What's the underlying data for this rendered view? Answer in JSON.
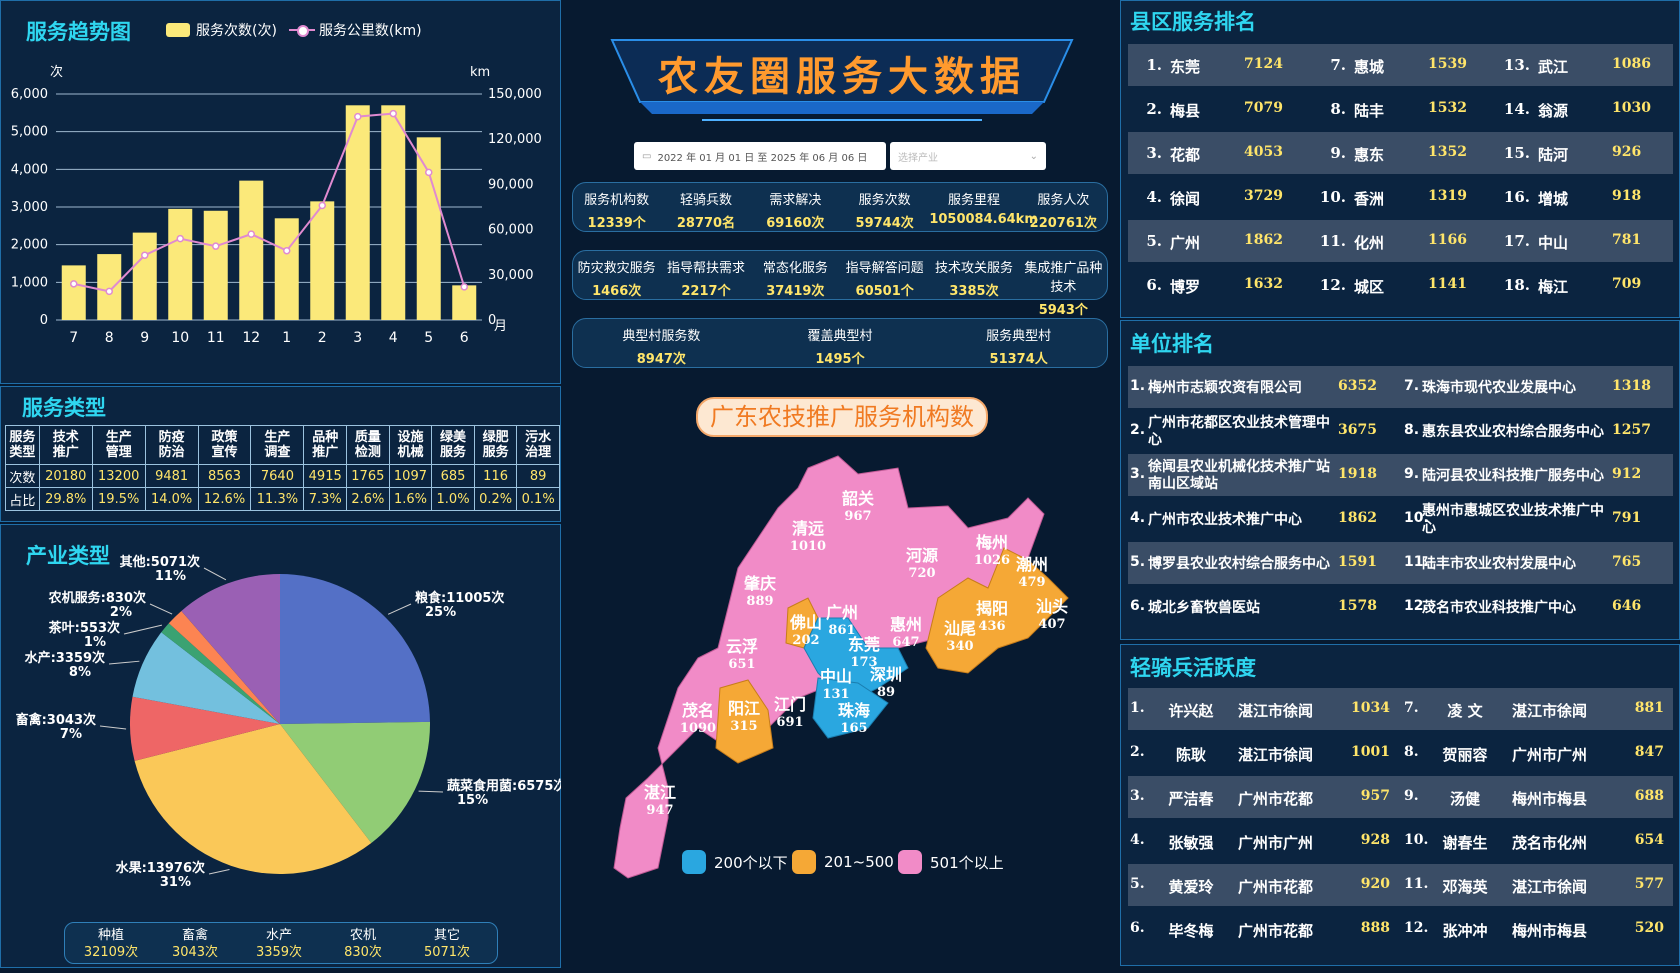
{
  "header": {
    "title": "农友圈服务大数据"
  },
  "filters": {
    "date_range": "2022 年 01 月 01 日  至  2025 年 06 月 06 日",
    "industry_placeholder": "选择产业"
  },
  "stats_row1": [
    {
      "label": "服务机构数",
      "value": "12339个"
    },
    {
      "label": "轻骑兵数",
      "value": "28770名"
    },
    {
      "label": "需求解决",
      "value": "69160次"
    },
    {
      "label": "服务次数",
      "value": "59744次"
    },
    {
      "label": "服务里程",
      "value": "1050084.64km"
    },
    {
      "label": "服务人次",
      "value": "220761次"
    }
  ],
  "stats_row2": [
    {
      "label": "防灾救灾服务",
      "value": "1466次"
    },
    {
      "label": "指导帮扶需求",
      "value": "2217个"
    },
    {
      "label": "常态化服务",
      "value": "37419次"
    },
    {
      "label": "指导解答问题",
      "value": "60501个"
    },
    {
      "label": "技术攻关服务",
      "value": "3385次"
    },
    {
      "label": "集成推广品种技术",
      "value": "5943个"
    }
  ],
  "stats_row3": [
    {
      "label": "典型村服务数",
      "value": "8947次"
    },
    {
      "label": "覆盖典型村",
      "value": "1495个"
    },
    {
      "label": "服务典型村",
      "value": "51374人"
    }
  ],
  "trend": {
    "title": "服务趋势图",
    "legend_count": "服务次数(次)",
    "legend_km": "服务公里数(km)",
    "left_unit": "次",
    "right_unit": "km",
    "x_unit": "月",
    "left_ticks": [
      "6,000",
      "5,000",
      "4,000",
      "3,000",
      "2,000",
      "1,000",
      "0"
    ],
    "right_ticks": [
      "150,000",
      "120,000",
      "90,000",
      "60,000",
      "30,000",
      "0"
    ]
  },
  "chart_data": [
    {
      "type": "bar",
      "title": "服务趋势图",
      "categories": [
        "7",
        "8",
        "9",
        "10",
        "11",
        "12",
        "1",
        "2",
        "3",
        "4",
        "5",
        "6"
      ],
      "series": [
        {
          "name": "服务次数(次)",
          "axis": "left",
          "color": "#fbe97a",
          "values": [
            1450,
            1750,
            2320,
            2950,
            2900,
            3700,
            2700,
            3150,
            5700,
            5700,
            4850,
            920
          ]
        },
        {
          "name": "服务公里数(km)",
          "axis": "right",
          "type": "line",
          "color": "#e08ad0",
          "values": [
            24000,
            19000,
            43000,
            54000,
            49000,
            57000,
            46000,
            76000,
            135000,
            137000,
            98000,
            22000
          ]
        }
      ],
      "ylim_left": [
        0,
        6000
      ],
      "ylim_right": [
        0,
        150000
      ],
      "ylabel_left": "次",
      "ylabel_right": "km",
      "xlabel": "月"
    },
    {
      "type": "pie",
      "title": "产业类型",
      "slices": [
        {
          "label": "粮食:11005次",
          "pct": "25%",
          "value": 11005,
          "color": "#5470c6"
        },
        {
          "label": "蔬菜食用菌:6575次",
          "pct": "15%",
          "value": 6575,
          "color": "#91cc75"
        },
        {
          "label": "水果:13976次",
          "pct": "31%",
          "value": 13976,
          "color": "#fac858"
        },
        {
          "label": "畜禽:3043次",
          "pct": "7%",
          "value": 3043,
          "color": "#ee6666"
        },
        {
          "label": "水产:3359次",
          "pct": "8%",
          "value": 3359,
          "color": "#73c0de"
        },
        {
          "label": "茶叶:553次",
          "pct": "1%",
          "value": 553,
          "color": "#3ba272"
        },
        {
          "label": "农机服务:830次",
          "pct": "2%",
          "value": 830,
          "color": "#fc8452"
        },
        {
          "label": "其他:5071次",
          "pct": "11%",
          "value": 5071,
          "color": "#9a60b4"
        }
      ]
    }
  ],
  "service_type": {
    "title": "服务类型",
    "headers": [
      "服务\n类型",
      "技术\n推广",
      "生产\n管理",
      "防疫\n防治",
      "政策\n宣传",
      "生产\n调查",
      "品种\n推广",
      "质量\n检测",
      "设施\n机械",
      "绿美\n服务",
      "绿肥\n服务",
      "污水\n治理"
    ],
    "rows": [
      [
        "次数",
        "20180",
        "13200",
        "9481",
        "8563",
        "7640",
        "4915",
        "1765",
        "1097",
        "685",
        "116",
        "89"
      ],
      [
        "占比",
        "29.8%",
        "19.5%",
        "14.0%",
        "12.6%",
        "11.3%",
        "7.3%",
        "2.6%",
        "1.6%",
        "1.0%",
        "0.2%",
        "0.1%"
      ]
    ]
  },
  "industry": {
    "title": "产业类型",
    "summary": [
      {
        "label": "种植",
        "value": "32109次"
      },
      {
        "label": "畜禽",
        "value": "3043次"
      },
      {
        "label": "水产",
        "value": "3359次"
      },
      {
        "label": "农机",
        "value": "830次"
      },
      {
        "label": "其它",
        "value": "5071次"
      }
    ]
  },
  "map": {
    "title": "广东农技推广服务机构数",
    "legend": [
      {
        "label": "200个以下",
        "color": "#2aa7e0"
      },
      {
        "label": "201~500",
        "color": "#f5a836"
      },
      {
        "label": "501个以上",
        "color": "#f18bc7"
      }
    ],
    "regions": [
      {
        "name": "韶关",
        "value": "967"
      },
      {
        "name": "清远",
        "value": "1010"
      },
      {
        "name": "河源",
        "value": "720"
      },
      {
        "name": "梅州",
        "value": "1026"
      },
      {
        "name": "潮州",
        "value": "479"
      },
      {
        "name": "肇庆",
        "value": "889"
      },
      {
        "name": "广州",
        "value": "861"
      },
      {
        "name": "佛山",
        "value": "202"
      },
      {
        "name": "惠州",
        "value": "647"
      },
      {
        "name": "揭阳",
        "value": "436"
      },
      {
        "name": "汕头",
        "value": "407"
      },
      {
        "name": "汕尾",
        "value": "340"
      },
      {
        "name": "云浮",
        "value": "651"
      },
      {
        "name": "东莞",
        "value": "173"
      },
      {
        "name": "深圳",
        "value": "89"
      },
      {
        "name": "中山",
        "value": "131"
      },
      {
        "name": "珠海",
        "value": "165"
      },
      {
        "name": "江门",
        "value": "691"
      },
      {
        "name": "阳江",
        "value": "315"
      },
      {
        "name": "茂名",
        "value": "1090"
      },
      {
        "name": "湛江",
        "value": "947"
      }
    ]
  },
  "county_rank": {
    "title": "县区服务排名",
    "items": [
      {
        "n": "1.",
        "name": "东莞",
        "v": "7124"
      },
      {
        "n": "2.",
        "name": "梅县",
        "v": "7079"
      },
      {
        "n": "3.",
        "name": "花都",
        "v": "4053"
      },
      {
        "n": "4.",
        "name": "徐闻",
        "v": "3729"
      },
      {
        "n": "5.",
        "name": "广州",
        "v": "1862"
      },
      {
        "n": "6.",
        "name": "博罗",
        "v": "1632"
      },
      {
        "n": "7.",
        "name": "惠城",
        "v": "1539"
      },
      {
        "n": "8.",
        "name": "陆丰",
        "v": "1532"
      },
      {
        "n": "9.",
        "name": "惠东",
        "v": "1352"
      },
      {
        "n": "10.",
        "name": "香洲",
        "v": "1319"
      },
      {
        "n": "11.",
        "name": "化州",
        "v": "1166"
      },
      {
        "n": "12.",
        "name": "城区",
        "v": "1141"
      },
      {
        "n": "13.",
        "name": "武江",
        "v": "1086"
      },
      {
        "n": "14.",
        "name": "翁源",
        "v": "1030"
      },
      {
        "n": "15.",
        "name": "陆河",
        "v": "926"
      },
      {
        "n": "16.",
        "name": "增城",
        "v": "918"
      },
      {
        "n": "17.",
        "name": "中山",
        "v": "781"
      },
      {
        "n": "18.",
        "name": "梅江",
        "v": "709"
      }
    ]
  },
  "unit_rank": {
    "title": "单位排名",
    "items": [
      {
        "n": "1.",
        "name": "梅州市志颖农资有限公司",
        "v": "6352"
      },
      {
        "n": "2.",
        "name": "广州市花都区农业技术管理中心",
        "v": "3675"
      },
      {
        "n": "3.",
        "name": "徐闻县农业机械化技术推广站南山区域站",
        "v": "1918"
      },
      {
        "n": "4.",
        "name": "广州市农业技术推广中心",
        "v": "1862"
      },
      {
        "n": "5.",
        "name": "博罗县农业农村综合服务中心",
        "v": "1591"
      },
      {
        "n": "6.",
        "name": "城北乡畜牧兽医站",
        "v": "1578"
      },
      {
        "n": "7.",
        "name": "珠海市现代农业发展中心",
        "v": "1318"
      },
      {
        "n": "8.",
        "name": "惠东县农业农村综合服务中心",
        "v": "1257"
      },
      {
        "n": "9.",
        "name": "陆河县农业科技推广服务中心",
        "v": "912"
      },
      {
        "n": "10.",
        "name": "惠州市惠城区农业技术推广中心",
        "v": "791"
      },
      {
        "n": "11.",
        "name": "陆丰市农业农村发展中心",
        "v": "765"
      },
      {
        "n": "12.",
        "name": "茂名市农业科技推广中心",
        "v": "646"
      }
    ]
  },
  "rider_rank": {
    "title": "轻骑兵活跃度",
    "items": [
      {
        "n": "1.",
        "name": "许兴赵",
        "loc": "湛江市徐闻",
        "v": "1034"
      },
      {
        "n": "2.",
        "name": "陈耿",
        "loc": "湛江市徐闻",
        "v": "1001"
      },
      {
        "n": "3.",
        "name": "严洁春",
        "loc": "广州市花都",
        "v": "957"
      },
      {
        "n": "4.",
        "name": "张敏强",
        "loc": "广州市广州",
        "v": "928"
      },
      {
        "n": "5.",
        "name": "黄爱玲",
        "loc": "广州市花都",
        "v": "920"
      },
      {
        "n": "6.",
        "name": "毕冬梅",
        "loc": "广州市花都",
        "v": "888"
      },
      {
        "n": "7.",
        "name": "凌 文",
        "loc": "湛江市徐闻",
        "v": "881"
      },
      {
        "n": "8.",
        "name": "贺丽容",
        "loc": "广州市广州",
        "v": "847"
      },
      {
        "n": "9.",
        "name": "汤健",
        "loc": "梅州市梅县",
        "v": "688"
      },
      {
        "n": "10.",
        "name": "谢春生",
        "loc": "茂名市化州",
        "v": "654"
      },
      {
        "n": "11.",
        "name": "邓海英",
        "loc": "湛江市徐闻",
        "v": "577"
      },
      {
        "n": "12.",
        "name": "张冲冲",
        "loc": "梅州市梅县",
        "v": "520"
      }
    ]
  }
}
